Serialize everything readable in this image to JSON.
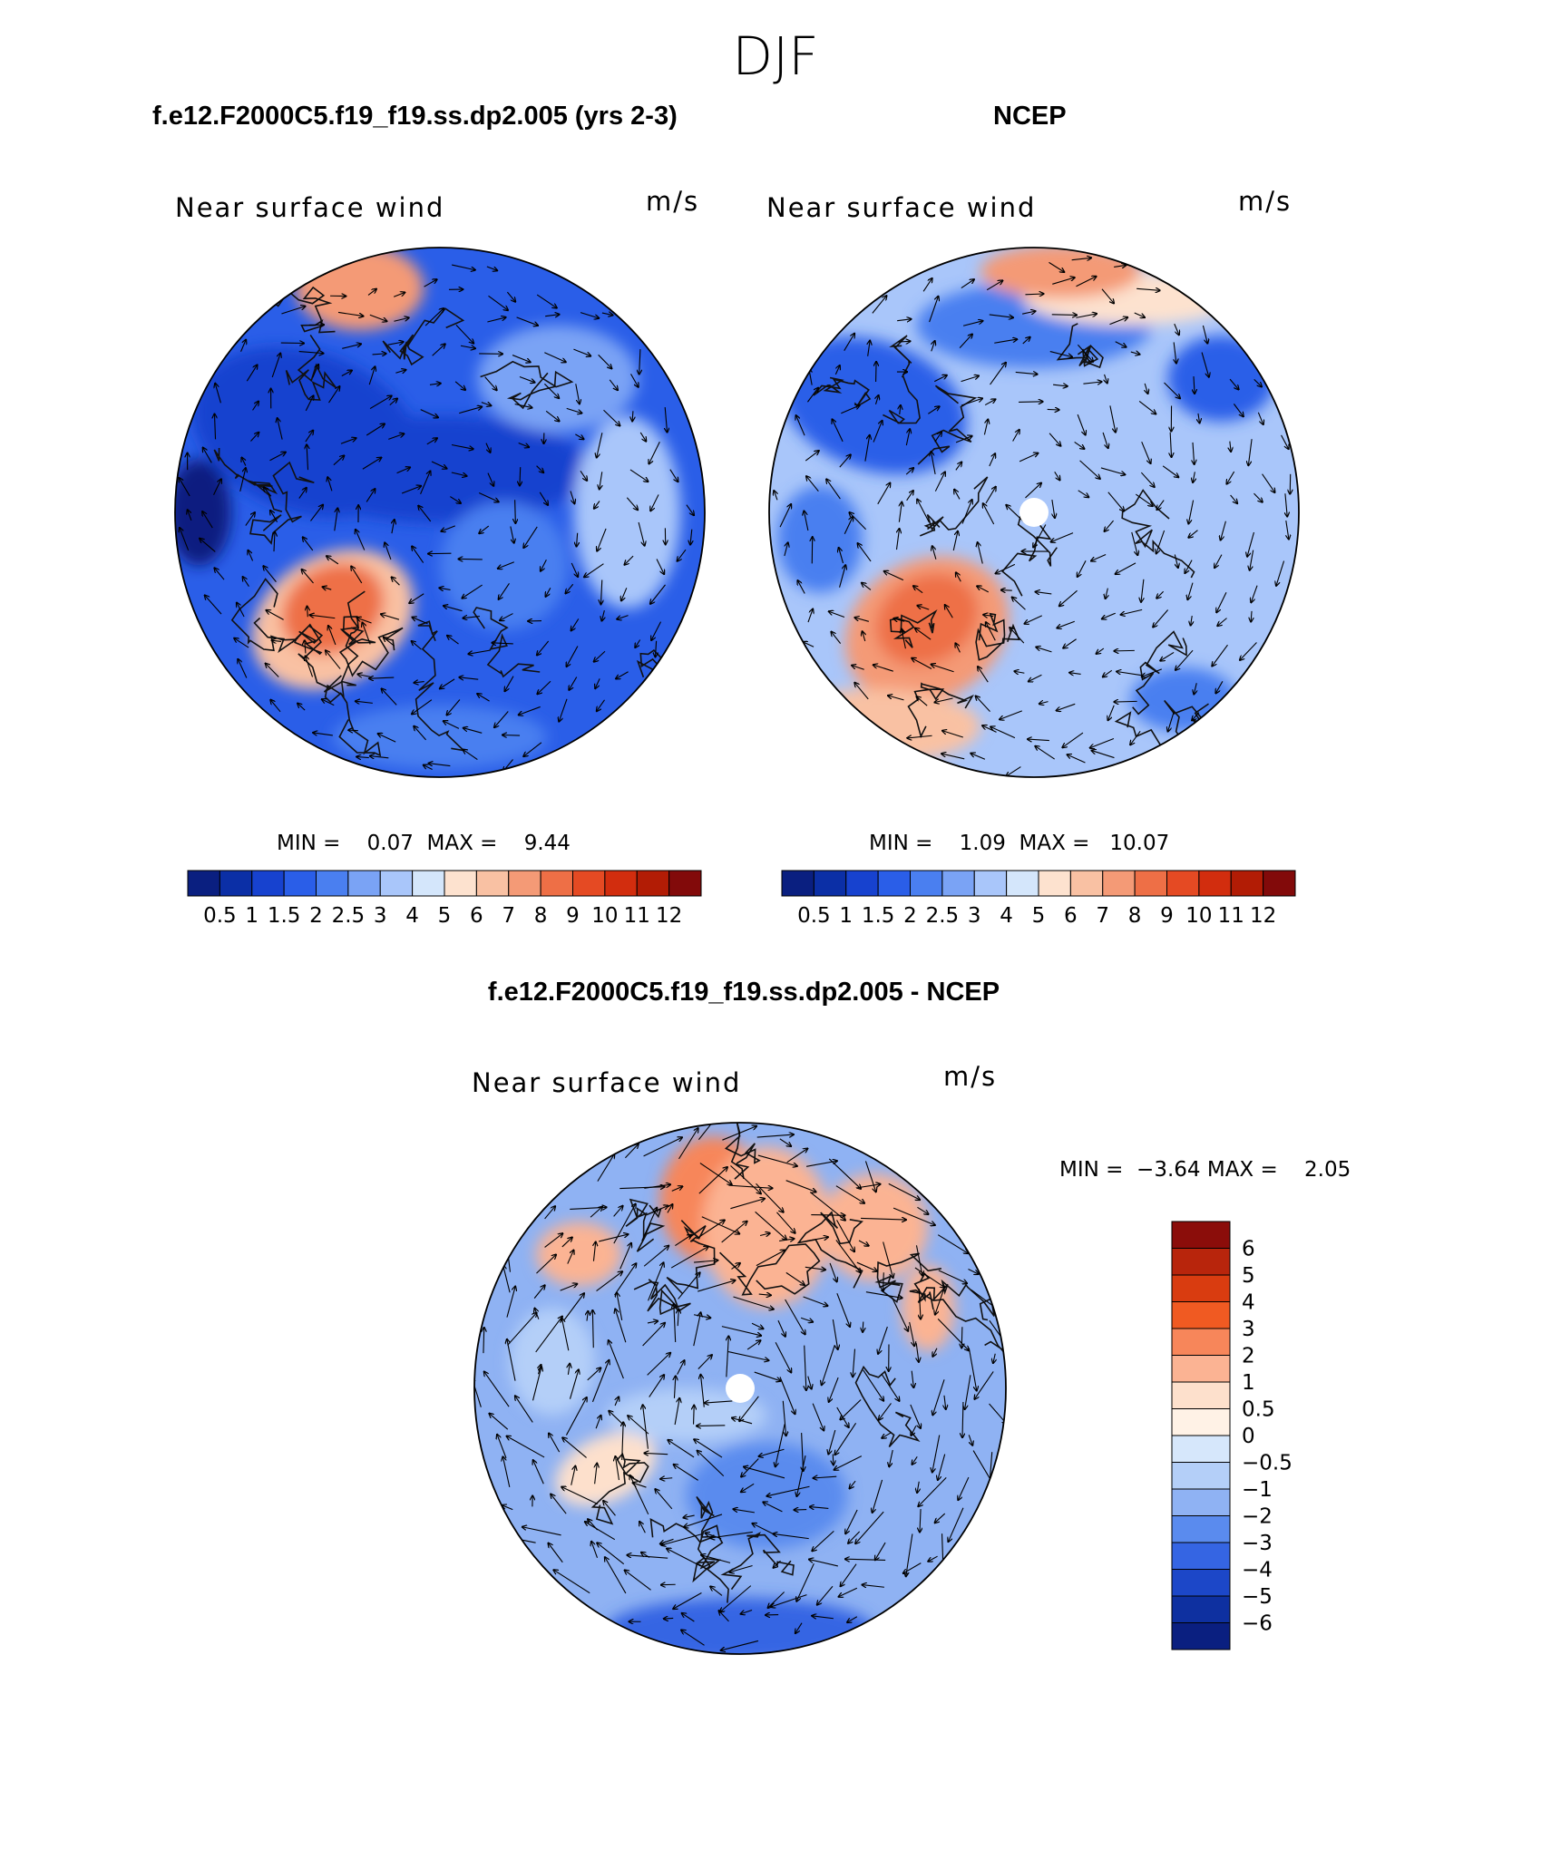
{
  "figure": {
    "season": "DJF",
    "diff_title": "f.e12.F2000C5.f19_f19.ss.dp2.005 - NCEP"
  },
  "panels": [
    {
      "title": "f.e12.F2000C5.f19_f19.ss.dp2.005 (yrs 2-3)",
      "subtitle": "Near surface wind",
      "units": "m/s",
      "min_label": "MIN =",
      "min_value": "0.07",
      "max_label": "MAX =",
      "max_value": "9.44"
    },
    {
      "title": "NCEP",
      "subtitle": "Near surface wind",
      "units": "m/s",
      "min_label": "MIN =",
      "min_value": "1.09",
      "max_label": "MAX =",
      "max_value": "10.07"
    },
    {
      "title": "f.e12.F2000C5.f19_f19.ss.dp2.005 - NCEP",
      "subtitle": "Near surface wind",
      "units": "m/s",
      "min_label": "MIN =",
      "min_value": "−3.64",
      "max_label": "MAX =",
      "max_value": "2.05"
    }
  ],
  "chart_data": [
    {
      "type": "heatmap",
      "projection": "north polar stereographic",
      "title": "f.e12.F2000C5.f19_f19.ss.dp2.005 (yrs 2-3)",
      "variable": "Near surface wind",
      "units": "m/s",
      "min": 0.07,
      "max": 9.44,
      "vectors": true,
      "colorbar": {
        "orientation": "horizontal",
        "levels": [
          "0.5",
          "1",
          "1.5",
          "2",
          "2.5",
          "3",
          "4",
          "5",
          "6",
          "7",
          "8",
          "9",
          "10",
          "11",
          "12"
        ],
        "colors": [
          "#0a1f80",
          "#0b2fa6",
          "#1742cf",
          "#2a5ee8",
          "#4a7ff0",
          "#7aa3f5",
          "#a9c6fa",
          "#d4e6fb",
          "#fde2cf",
          "#f9c1a3",
          "#f49a76",
          "#ee6f46",
          "#e54a23",
          "#d22d0e",
          "#b21c05",
          "#820a0a"
        ]
      }
    },
    {
      "type": "heatmap",
      "projection": "north polar stereographic",
      "title": "NCEP",
      "variable": "Near surface wind",
      "units": "m/s",
      "min": 1.09,
      "max": 10.07,
      "vectors": true,
      "colorbar": {
        "orientation": "horizontal",
        "levels": [
          "0.5",
          "1",
          "1.5",
          "2",
          "2.5",
          "3",
          "4",
          "5",
          "6",
          "7",
          "8",
          "9",
          "10",
          "11",
          "12"
        ],
        "colors": [
          "#0a1f80",
          "#0b2fa6",
          "#1742cf",
          "#2a5ee8",
          "#4a7ff0",
          "#7aa3f5",
          "#a9c6fa",
          "#d4e6fb",
          "#fde2cf",
          "#f9c1a3",
          "#f49a76",
          "#ee6f46",
          "#e54a23",
          "#d22d0e",
          "#b21c05",
          "#820a0a"
        ]
      }
    },
    {
      "type": "heatmap",
      "projection": "north polar stereographic",
      "title": "f.e12.F2000C5.f19_f19.ss.dp2.005 - NCEP",
      "variable": "Near surface wind",
      "units": "m/s",
      "min": -3.64,
      "max": 2.05,
      "vectors": true,
      "colorbar": {
        "orientation": "vertical",
        "levels": [
          "6",
          "5",
          "4",
          "3",
          "2",
          "1",
          "0.5",
          "0",
          "−0.5",
          "−1",
          "−2",
          "−3",
          "−4",
          "−5",
          "−6"
        ],
        "colors": [
          "#8b0d0a",
          "#b8250c",
          "#d93c10",
          "#f05a22",
          "#f7865a",
          "#fbb393",
          "#fde0cc",
          "#fff2e6",
          "#d6e7fb",
          "#b4cff8",
          "#8fb2f3",
          "#5a8bee",
          "#3565e3",
          "#1c47c8",
          "#0e30a0",
          "#0a1f80"
        ]
      }
    }
  ]
}
